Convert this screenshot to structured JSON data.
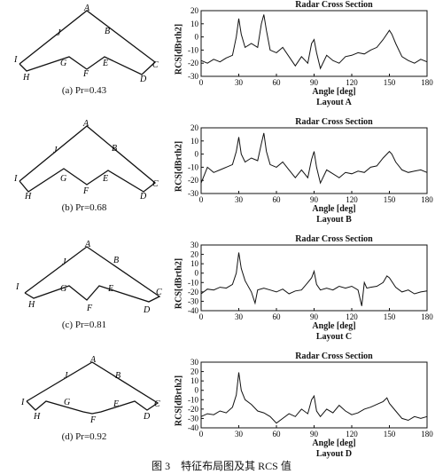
{
  "caption": "图 3　特征布局图及其 RCS 值",
  "panels": [
    {
      "subcaption": "(a) Pr=0.43",
      "layout_label": "Layout A",
      "plot_title": "Radar Cross Section",
      "ylabel": "RCS[dBrth2]",
      "xlabel": "Angle [deg]",
      "node_labels": [
        "A",
        "B",
        "C",
        "D",
        "E",
        "F",
        "G",
        "H",
        "I",
        "J"
      ]
    },
    {
      "subcaption": "(b) Pr=0.68",
      "layout_label": "Layout B",
      "plot_title": "Radar Cross Section",
      "ylabel": "RCS[dBrth2]",
      "xlabel": "Angle [deg]",
      "node_labels": [
        "A",
        "B",
        "C",
        "D",
        "E",
        "F",
        "G",
        "H",
        "I",
        "J"
      ]
    },
    {
      "subcaption": "(c) Pr=0.81",
      "layout_label": "Layout C",
      "plot_title": "Radar Cross Section",
      "ylabel": "RCS[dBrth2]",
      "xlabel": "Angle [deg]",
      "node_labels": [
        "A",
        "B",
        "C",
        "D",
        "E",
        "F",
        "G",
        "H",
        "I",
        "J"
      ]
    },
    {
      "subcaption": "(d) Pr=0.92",
      "layout_label": "Layout D",
      "plot_title": "Radar Cross Section",
      "ylabel": "RCS[dBrth2]",
      "xlabel": "Angle [deg]",
      "node_labels": [
        "A",
        "B",
        "C",
        "D",
        "E",
        "F",
        "G",
        "H",
        "I",
        "J"
      ]
    }
  ],
  "chart_data": [
    {
      "type": "line",
      "title": "Radar Cross Section",
      "xlabel": "Angle [deg]",
      "ylabel": "RCS[dBrth2]",
      "xlim": [
        0,
        180
      ],
      "ylim": [
        -30,
        20
      ],
      "xticks": [
        0,
        30,
        60,
        90,
        120,
        150,
        180
      ],
      "yticks": [
        -30,
        -20,
        -10,
        0,
        10,
        20
      ],
      "x": [
        0,
        5,
        10,
        15,
        20,
        25,
        28,
        30,
        32,
        35,
        40,
        45,
        48,
        50,
        52,
        55,
        60,
        65,
        70,
        75,
        80,
        85,
        88,
        90,
        92,
        95,
        100,
        105,
        110,
        115,
        120,
        125,
        130,
        135,
        140,
        145,
        150,
        152,
        155,
        160,
        165,
        170,
        175,
        180
      ],
      "y": [
        -18,
        -20,
        -17,
        -19,
        -16,
        -14,
        0,
        14,
        2,
        -8,
        -5,
        -8,
        10,
        17,
        5,
        -10,
        -12,
        -8,
        -15,
        -22,
        -15,
        -20,
        -5,
        -2,
        -12,
        -24,
        -14,
        -18,
        -20,
        -15,
        -14,
        -12,
        -13,
        -10,
        -8,
        -2,
        5,
        2,
        -5,
        -15,
        -18,
        -20,
        -17,
        -19
      ]
    },
    {
      "type": "line",
      "title": "Radar Cross Section",
      "xlabel": "Angle [deg]",
      "ylabel": "RCS[dBrth2]",
      "xlim": [
        0,
        180
      ],
      "ylim": [
        -30,
        20
      ],
      "xticks": [
        0,
        30,
        60,
        90,
        120,
        150,
        180
      ],
      "yticks": [
        -30,
        -20,
        -10,
        0,
        10,
        20
      ],
      "x": [
        0,
        5,
        10,
        15,
        20,
        25,
        28,
        30,
        32,
        35,
        40,
        45,
        48,
        50,
        52,
        55,
        60,
        65,
        70,
        75,
        80,
        85,
        88,
        90,
        92,
        95,
        100,
        105,
        110,
        115,
        120,
        125,
        130,
        135,
        140,
        145,
        150,
        152,
        155,
        160,
        165,
        170,
        175,
        180
      ],
      "y": [
        -22,
        -10,
        -14,
        -12,
        -10,
        -8,
        2,
        13,
        0,
        -6,
        -3,
        -5,
        8,
        16,
        2,
        -8,
        -10,
        -6,
        -12,
        -18,
        -12,
        -18,
        -4,
        2,
        -10,
        -22,
        -12,
        -15,
        -18,
        -14,
        -15,
        -13,
        -14,
        -10,
        -9,
        -3,
        2,
        0,
        -6,
        -12,
        -14,
        -13,
        -12,
        -14
      ]
    },
    {
      "type": "line",
      "title": "Radar Cross Section",
      "xlabel": "Angle [deg]",
      "ylabel": "RCS[dBrth2]",
      "xlim": [
        0,
        180
      ],
      "ylim": [
        -40,
        30
      ],
      "xticks": [
        0,
        30,
        60,
        90,
        120,
        150,
        180
      ],
      "yticks": [
        -40,
        -30,
        -20,
        -10,
        0,
        10,
        20,
        30
      ],
      "x": [
        0,
        5,
        10,
        15,
        20,
        25,
        28,
        30,
        32,
        35,
        40,
        43,
        45,
        50,
        55,
        60,
        65,
        70,
        75,
        80,
        85,
        88,
        90,
        92,
        95,
        100,
        105,
        110,
        115,
        120,
        125,
        128,
        130,
        132,
        135,
        140,
        145,
        148,
        150,
        155,
        160,
        165,
        170,
        175,
        180
      ],
      "y": [
        -22,
        -17,
        -18,
        -15,
        -16,
        -12,
        0,
        22,
        5,
        -8,
        -20,
        -32,
        -18,
        -16,
        -18,
        -20,
        -17,
        -22,
        -19,
        -18,
        -10,
        -5,
        2,
        -12,
        -18,
        -16,
        -18,
        -14,
        -16,
        -14,
        -18,
        -35,
        -10,
        -16,
        -15,
        -14,
        -10,
        -3,
        -5,
        -15,
        -20,
        -18,
        -22,
        -20,
        -19
      ]
    },
    {
      "type": "line",
      "title": "Radar Cross Section",
      "xlabel": "Angle [deg]",
      "ylabel": "RCS[dBrth2]",
      "xlim": [
        0,
        180
      ],
      "ylim": [
        -40,
        30
      ],
      "xticks": [
        0,
        30,
        60,
        90,
        120,
        150,
        180
      ],
      "yticks": [
        -40,
        -30,
        -20,
        -10,
        0,
        10,
        20,
        30
      ],
      "x": [
        0,
        5,
        10,
        15,
        20,
        25,
        28,
        30,
        32,
        35,
        40,
        45,
        50,
        55,
        60,
        65,
        70,
        75,
        80,
        85,
        88,
        90,
        92,
        95,
        100,
        105,
        110,
        115,
        120,
        125,
        130,
        135,
        140,
        145,
        148,
        150,
        155,
        160,
        165,
        170,
        175,
        180
      ],
      "y": [
        -28,
        -25,
        -26,
        -22,
        -24,
        -18,
        -5,
        19,
        0,
        -10,
        -15,
        -22,
        -24,
        -28,
        -35,
        -30,
        -25,
        -28,
        -20,
        -25,
        -10,
        -6,
        -22,
        -28,
        -20,
        -24,
        -16,
        -22,
        -26,
        -24,
        -20,
        -18,
        -15,
        -12,
        -8,
        -14,
        -22,
        -30,
        -32,
        -28,
        -30,
        -28
      ]
    }
  ]
}
